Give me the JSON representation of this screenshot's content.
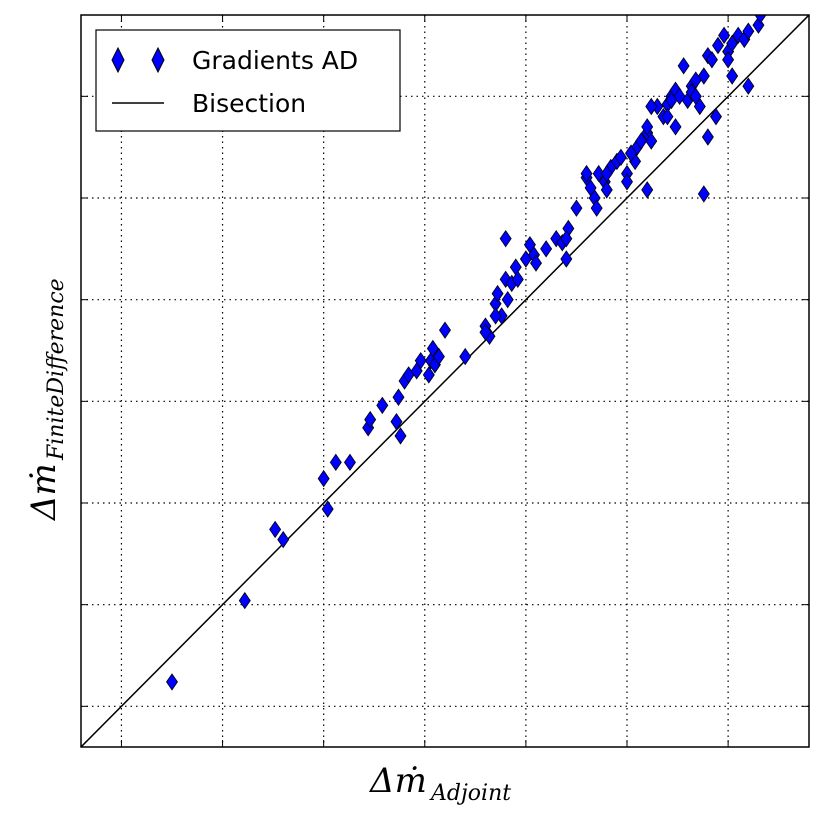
{
  "chart_data": {
    "type": "scatter",
    "title": "",
    "xlabel": "Δṁ_Adjoint",
    "ylabel": "Δṁ_FiniteDifference",
    "xlim": [
      -0.2,
      3.4
    ],
    "ylim": [
      -0.2,
      3.4
    ],
    "grid": true,
    "grid_style": "dotted",
    "tick_labels_shown": false,
    "legend_position": "top-left",
    "legend": [
      {
        "label": "Gradients AD",
        "marker": "diamond",
        "color": "#0000ff"
      },
      {
        "label": "Bisection",
        "marker": "line",
        "color": "#000000"
      }
    ],
    "series": [
      {
        "name": "Gradients AD",
        "kind": "scatter",
        "marker": "diamond",
        "color": "#0000ff",
        "x": [
          0.25,
          0.61,
          0.76,
          0.8,
          1.0,
          1.02,
          1.06,
          1.13,
          1.22,
          1.23,
          1.29,
          1.37,
          1.38,
          1.4,
          1.42,
          1.46,
          1.48,
          1.52,
          1.53,
          1.54,
          1.55,
          1.57,
          1.6,
          1.7,
          1.8,
          1.82,
          1.85,
          1.86,
          1.88,
          1.9,
          1.91,
          1.93,
          1.95,
          1.96,
          2.0,
          2.02,
          2.04,
          2.05,
          2.1,
          2.15,
          2.18,
          2.21,
          2.25,
          2.3,
          2.32,
          2.34,
          2.36,
          2.39,
          2.4,
          2.42,
          2.45,
          2.47,
          2.5,
          2.52,
          2.55,
          2.57,
          2.6,
          2.62,
          2.65,
          2.68,
          2.7,
          2.72,
          2.74,
          2.76,
          2.78,
          2.8,
          2.82,
          2.84,
          2.86,
          2.88,
          2.9,
          2.92,
          2.95,
          2.98,
          3.0,
          3.02,
          3.05,
          3.08,
          3.1,
          3.15,
          3.22,
          2.4,
          2.54,
          2.62,
          2.74,
          2.88,
          2.52,
          2.6,
          2.72,
          2.82,
          2.94,
          3.02,
          3.1,
          1.9,
          1.8,
          1.36,
          1.85,
          2.2,
          2.35,
          2.6,
          2.7,
          2.84,
          3.16,
          3.0,
          2.5,
          2.9,
          2.3,
          2.2
        ],
        "y": [
          0.12,
          0.52,
          0.87,
          0.82,
          1.12,
          0.97,
          1.2,
          1.2,
          1.37,
          1.41,
          1.48,
          1.52,
          1.33,
          1.6,
          1.63,
          1.65,
          1.7,
          1.63,
          1.7,
          1.76,
          1.68,
          1.72,
          1.85,
          1.72,
          1.87,
          1.82,
          1.98,
          2.03,
          1.92,
          2.1,
          2.0,
          2.08,
          2.16,
          2.1,
          2.2,
          2.27,
          2.22,
          2.18,
          2.25,
          2.3,
          2.28,
          2.35,
          2.45,
          2.6,
          2.55,
          2.5,
          2.62,
          2.58,
          2.54,
          2.65,
          2.68,
          2.7,
          2.62,
          2.72,
          2.75,
          2.78,
          2.82,
          2.78,
          2.95,
          2.9,
          2.96,
          3.0,
          3.03,
          3.0,
          3.15,
          2.98,
          3.05,
          3.08,
          2.95,
          3.1,
          3.2,
          3.18,
          3.25,
          3.3,
          3.22,
          3.26,
          3.3,
          3.28,
          3.32,
          3.35,
          3.45,
          2.62,
          2.68,
          2.95,
          2.85,
          2.52,
          2.72,
          2.85,
          2.98,
          3.02,
          2.9,
          3.1,
          3.05,
          2.3,
          1.84,
          1.4,
          1.92,
          2.3,
          2.45,
          2.54,
          2.9,
          3.0,
          3.4,
          3.18,
          2.58,
          2.8,
          2.62,
          2.2
        ]
      },
      {
        "name": "Bisection",
        "kind": "line",
        "color": "#000000",
        "x": [
          -0.2,
          3.4
        ],
        "y": [
          -0.2,
          3.4
        ]
      }
    ]
  }
}
